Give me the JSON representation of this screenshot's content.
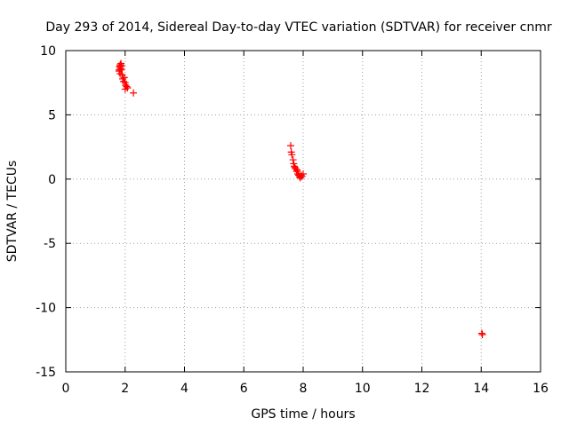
{
  "chart_data": {
    "type": "scatter",
    "title": "Day 293 of 2014, Sidereal Day-to-day VTEC variation (SDTVAR) for receiver cnmr",
    "xlabel": "GPS time / hours",
    "ylabel": "SDTVAR / TECUs",
    "xlim": [
      0,
      16
    ],
    "ylim": [
      -15,
      10
    ],
    "xticks": [
      0,
      2,
      4,
      6,
      8,
      10,
      12,
      14,
      16
    ],
    "yticks": [
      -15,
      -10,
      -5,
      0,
      5,
      10
    ],
    "grid": true,
    "marker": "+",
    "marker_color": "#ff0000",
    "series": [
      {
        "points": [
          [
            1.8,
            8.5
          ],
          [
            1.82,
            8.7
          ],
          [
            1.84,
            8.9
          ],
          [
            1.86,
            9.0
          ],
          [
            1.82,
            8.8
          ],
          [
            1.85,
            8.6
          ],
          [
            1.88,
            8.8
          ],
          [
            1.8,
            8.4
          ],
          [
            1.83,
            8.2
          ],
          [
            1.87,
            8.5
          ],
          [
            1.9,
            8.1
          ],
          [
            1.92,
            7.8
          ],
          [
            1.95,
            7.6
          ],
          [
            1.97,
            7.9
          ],
          [
            2.0,
            7.5
          ],
          [
            2.02,
            7.3
          ],
          [
            2.05,
            7.2
          ],
          [
            2.0,
            7.0
          ],
          [
            2.08,
            7.1
          ],
          [
            2.28,
            6.7
          ],
          [
            7.58,
            2.6
          ],
          [
            7.6,
            2.1
          ],
          [
            7.62,
            1.9
          ],
          [
            7.66,
            1.5
          ],
          [
            7.68,
            1.2
          ],
          [
            7.7,
            1.0
          ],
          [
            7.72,
            0.9
          ],
          [
            7.75,
            0.8
          ],
          [
            7.78,
            0.6
          ],
          [
            7.8,
            0.7
          ],
          [
            7.82,
            0.4
          ],
          [
            7.85,
            0.3
          ],
          [
            7.88,
            0.2
          ],
          [
            7.9,
            0.1
          ],
          [
            7.93,
            0.3
          ],
          [
            7.96,
            0.2
          ],
          [
            8.0,
            0.4
          ],
          [
            14.02,
            -12.0
          ],
          [
            14.04,
            -12.1
          ]
        ]
      }
    ]
  }
}
